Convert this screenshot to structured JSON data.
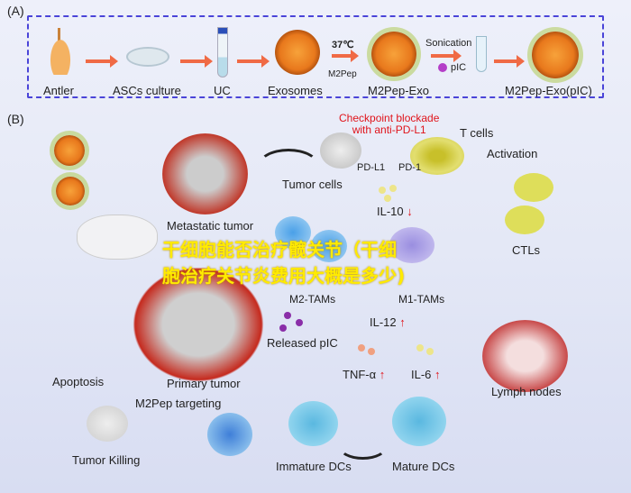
{
  "panel_a": {
    "label": "(A)",
    "steps": [
      "Antler",
      "ASCs culture",
      "UC",
      "Exosomes",
      "M2Pep-Exo",
      "M2Pep-Exo(pIC)"
    ],
    "temp": "37℃",
    "m2pep": "M2Pep",
    "sonication": "Sonication",
    "pic": "pIC"
  },
  "panel_b": {
    "label": "(B)",
    "checkpoint": [
      "Checkpoint blockade",
      "with anti-PD-L1"
    ],
    "t_cells": "T cells",
    "pd_l1": "PD-L1",
    "pd_1": "PD-1",
    "tumor_cells": "Tumor cells",
    "metastatic_tumor": "Metastatic tumor",
    "il10": "IL-10",
    "activation": "Activation",
    "m2_tams": "M2-TAMs",
    "m1_tams": "M1-TAMs",
    "ctls": "CTLs",
    "released_pic": "Released pIC",
    "il12": "IL-12",
    "tnf": "TNF-α",
    "il6": "IL-6",
    "primary_tumor": "Primary tumor",
    "apoptosis": "Apoptosis",
    "m2pep_targeting": "M2Pep targeting",
    "tumor_killing": "Tumor Killing",
    "immature_dcs": "Immature DCs",
    "mature_dcs": "Mature DCs",
    "lymph_nodes": "Lymph nodes",
    "down_arrow": "↓",
    "up_arrow": "↑"
  },
  "overlay": {
    "line1": "干细胞能否治疗髋关节（干细",
    "line2": "胞治疗关节炎费用大概是多少)"
  },
  "colors": {
    "frame": "#4a44d8",
    "arrow": "#f06a45",
    "highlight": "#ffeb00",
    "red": "#e0141b"
  }
}
